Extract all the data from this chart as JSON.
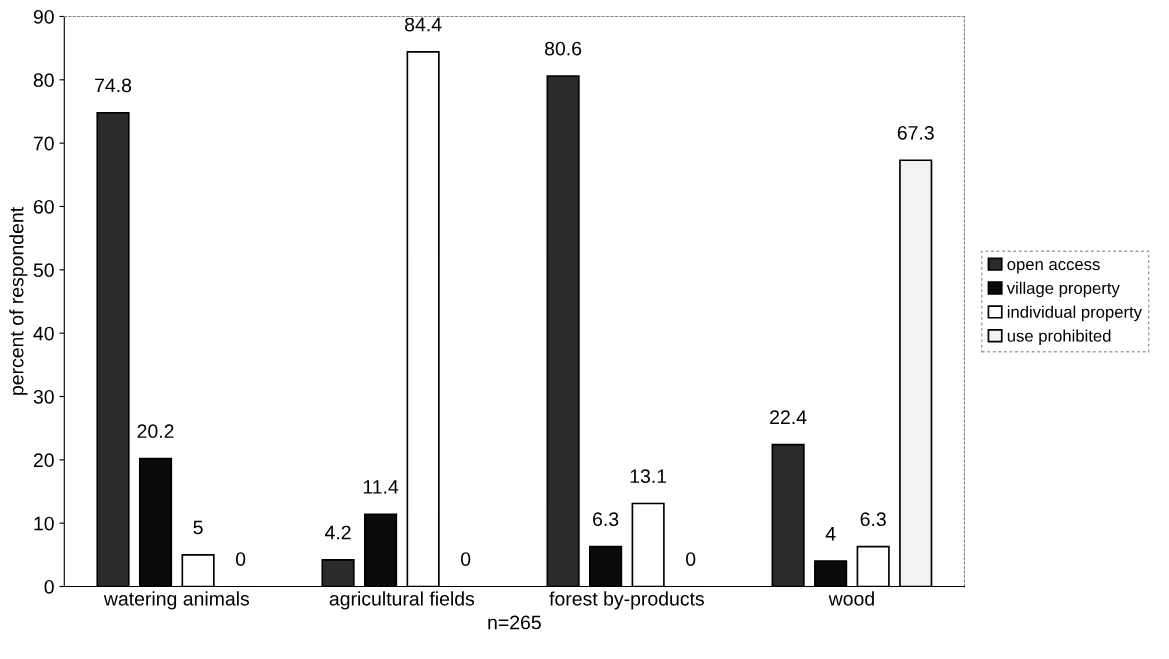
{
  "chart_data": {
    "type": "bar",
    "xlabel": "n=265",
    "ylabel": "percent of respondent",
    "categories": [
      "watering animals",
      "agricultural fields",
      "forest by-products",
      "wood"
    ],
    "series": [
      {
        "name": "open access",
        "color": "#2b2b2b",
        "values": [
          74.8,
          4.2,
          80.6,
          22.4
        ]
      },
      {
        "name": "village property",
        "color": "#0a0a0a",
        "values": [
          20.2,
          11.4,
          6.3,
          4
        ]
      },
      {
        "name": "individual property",
        "color": "#ffffff",
        "values": [
          5,
          84.4,
          13.1,
          6.3
        ]
      },
      {
        "name": "use prohibited",
        "color": "#f2f2f2",
        "values": [
          0,
          0,
          0,
          67.3
        ]
      }
    ],
    "ylim": [
      0,
      90
    ],
    "yticks": [
      0,
      10,
      20,
      30,
      40,
      50,
      60,
      70,
      80,
      90
    ],
    "grid": false,
    "legend": "right",
    "data_labels": true
  }
}
